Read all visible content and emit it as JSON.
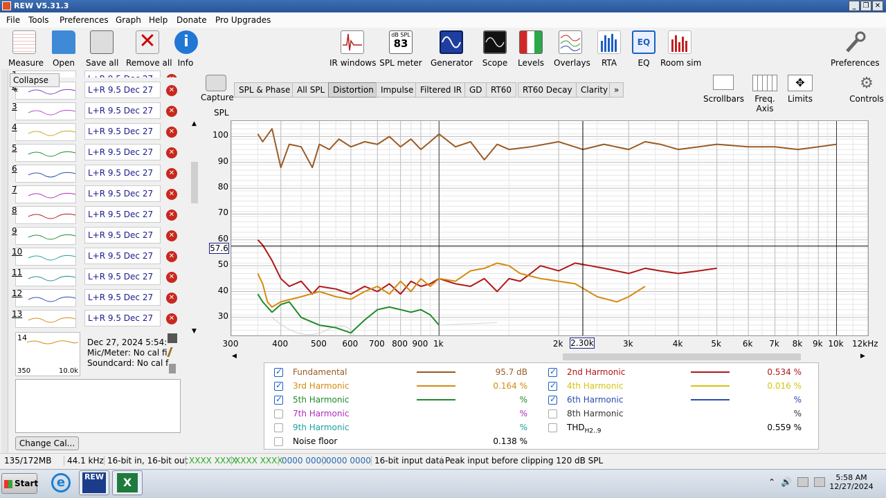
{
  "window": {
    "title": "REW V5.31.3"
  },
  "menu": [
    "File",
    "Tools",
    "Preferences",
    "Graph",
    "Help",
    "Donate",
    "Pro Upgrades"
  ],
  "toolbar": {
    "left": [
      {
        "label": "Measure",
        "icon": "measure-icon"
      },
      {
        "label": "Open",
        "icon": "folder-icon"
      },
      {
        "label": "Save all",
        "icon": "save-icon"
      },
      {
        "label": "Remove all",
        "icon": "remove-icon"
      },
      {
        "label": "Info",
        "icon": "info-icon"
      }
    ],
    "center": [
      {
        "label": "IR windows",
        "icon": "ir-windows-icon"
      },
      {
        "label": "SPL meter",
        "icon": "spl-meter-icon",
        "reading": "83",
        "unit": "dB SPL"
      },
      {
        "label": "Generator",
        "icon": "generator-icon"
      },
      {
        "label": "Scope",
        "icon": "scope-icon"
      },
      {
        "label": "Levels",
        "icon": "levels-icon"
      },
      {
        "label": "Overlays",
        "icon": "overlays-icon"
      },
      {
        "label": "RTA",
        "icon": "rta-icon"
      },
      {
        "label": "EQ",
        "icon": "eq-icon"
      },
      {
        "label": "Room sim",
        "icon": "room-sim-icon"
      }
    ],
    "right": {
      "label": "Preferences",
      "icon": "wrench-icon"
    }
  },
  "panel": {
    "collapse_label": "Collapse",
    "measurements": [
      {
        "num": "1",
        "name": "L+R 9.5 Dec 27"
      },
      {
        "num": "2",
        "name": "L+R 9.5 Dec 27"
      },
      {
        "num": "3",
        "name": "L+R 9.5 Dec 27"
      },
      {
        "num": "4",
        "name": "L+R 9.5 Dec 27"
      },
      {
        "num": "5",
        "name": "L+R 9.5 Dec 27"
      },
      {
        "num": "6",
        "name": "L+R 9.5 Dec 27"
      },
      {
        "num": "7",
        "name": "L+R 9.5 Dec 27"
      },
      {
        "num": "8",
        "name": "L+R 9.5 Dec 27"
      },
      {
        "num": "9",
        "name": "L+R 9.5 Dec 27"
      },
      {
        "num": "10",
        "name": "L+R 9.5 Dec 27"
      },
      {
        "num": "11",
        "name": "L+R 9.5 Dec 27"
      },
      {
        "num": "12",
        "name": "L+R 9.5 Dec 27"
      },
      {
        "num": "13",
        "name": "L+R 9.5 Dec 27"
      }
    ],
    "selected": {
      "num": "14",
      "date": "Dec 27, 2024 5:54:",
      "mic": "Mic/Meter: No cal fi",
      "soundcard": "Soundcard: No cal f",
      "range_lo": "350",
      "range_hi": "10.0k"
    },
    "change_cal": "Change Cal..."
  },
  "graph": {
    "capture_label": "Capture",
    "tabs": [
      "SPL & Phase",
      "All SPL",
      "Distortion",
      "Impulse",
      "Filtered IR",
      "GD",
      "RT60",
      "RT60 Decay",
      "Clarity",
      "»"
    ],
    "active_tab": "Distortion",
    "controls": [
      {
        "label": "Scrollbars",
        "icon": "scrollbars-icon"
      },
      {
        "label": "Freq. Axis",
        "icon": "freq-axis-icon"
      },
      {
        "label": "Limits",
        "icon": "limits-icon"
      },
      {
        "label": "Controls",
        "icon": "gear-icon"
      }
    ],
    "y_title": "SPL",
    "cursor_x": "2.30k",
    "cursor_y": "57.6"
  },
  "chart_data": {
    "type": "line",
    "x_scale": "log",
    "xlim": [
      300,
      12000
    ],
    "ylim": [
      23,
      106
    ],
    "yticks": [
      30,
      40,
      50,
      60,
      70,
      80,
      90,
      100
    ],
    "xticks": [
      "300",
      "400",
      "500",
      "600",
      "700",
      "800",
      "900",
      "1k",
      "2k",
      "3k",
      "4k",
      "5k",
      "6k",
      "7k",
      "8k",
      "9k",
      "10k",
      "12kHz"
    ],
    "xtick_values": [
      300,
      400,
      500,
      600,
      700,
      800,
      900,
      1000,
      2000,
      3000,
      4000,
      5000,
      6000,
      7000,
      8000,
      9000,
      10000,
      12000
    ],
    "series": [
      {
        "name": "Fundamental",
        "color": "#9a5a23",
        "x": [
          350,
          360,
          380,
          400,
          420,
          450,
          480,
          500,
          530,
          560,
          600,
          650,
          700,
          750,
          800,
          850,
          900,
          950,
          1000,
          1100,
          1200,
          1300,
          1400,
          1500,
          1700,
          2000,
          2300,
          2600,
          3000,
          3300,
          3600,
          4000,
          4500,
          5000,
          6000,
          7000,
          8000,
          9000,
          10000
        ],
        "y": [
          101,
          98,
          103,
          88,
          97,
          96,
          88,
          97,
          95,
          99,
          96,
          98,
          97,
          100,
          96,
          99,
          95,
          98,
          101,
          96,
          98,
          91,
          97,
          95,
          96,
          98,
          95,
          97,
          95,
          98,
          97,
          95,
          96,
          97,
          96,
          96,
          95,
          96,
          97
        ]
      },
      {
        "name": "2nd Harmonic",
        "color": "#b01515",
        "x": [
          350,
          360,
          370,
          380,
          400,
          420,
          450,
          480,
          500,
          550,
          600,
          650,
          700,
          750,
          800,
          850,
          900,
          950,
          1000,
          1100,
          1200,
          1300,
          1400,
          1500,
          1600,
          1700,
          1800,
          2000,
          2200,
          2400,
          2600,
          3000,
          3300,
          3600,
          4000,
          4500,
          5000
        ],
        "y": [
          60,
          58,
          55,
          52,
          45,
          42,
          44,
          39,
          42,
          41,
          39,
          42,
          40,
          43,
          39,
          44,
          42,
          43,
          45,
          43,
          42,
          45,
          40,
          45,
          44,
          47,
          50,
          48,
          51,
          50,
          49,
          47,
          49,
          48,
          47,
          48,
          49
        ]
      },
      {
        "name": "3rd Harmonic",
        "color": "#d58a0e",
        "x": [
          350,
          360,
          370,
          380,
          400,
          450,
          500,
          550,
          600,
          650,
          700,
          750,
          800,
          850,
          900,
          950,
          1000,
          1100,
          1200,
          1300,
          1400,
          1500,
          1600,
          1800,
          2000,
          2200,
          2500,
          2800,
          3000,
          3300
        ],
        "y": [
          47,
          43,
          36,
          34,
          36,
          38,
          40,
          38,
          37,
          40,
          42,
          39,
          44,
          40,
          45,
          42,
          45,
          44,
          48,
          49,
          51,
          50,
          47,
          45,
          44,
          43,
          38,
          36,
          38,
          42
        ]
      },
      {
        "name": "5th Harmonic",
        "color": "#1e8a2a",
        "x": [
          350,
          360,
          380,
          400,
          420,
          450,
          500,
          550,
          600,
          650,
          700,
          750,
          800,
          850,
          900,
          950,
          1000
        ],
        "y": [
          39,
          36,
          32,
          35,
          36,
          30,
          27,
          26,
          24,
          29,
          33,
          34,
          33,
          32,
          33,
          31,
          27
        ]
      }
    ]
  },
  "legend": [
    {
      "label": "Fundamental",
      "value": "95.7 dB",
      "checked": true,
      "color": "#9a5a23",
      "text_color": "#9a5a23"
    },
    {
      "label": "2nd Harmonic",
      "value": "0.534 %",
      "checked": true,
      "color": "#b01515",
      "text_color": "#b01515"
    },
    {
      "label": "3rd Harmonic",
      "value": "0.164 %",
      "checked": true,
      "color": "#d58a0e",
      "text_color": "#d58a0e"
    },
    {
      "label": "4th Harmonic",
      "value": "0.016 %",
      "checked": true,
      "color": "#d6c40e",
      "text_color": "#d6c40e"
    },
    {
      "label": "5th Harmonic",
      "value": "%",
      "checked": true,
      "color": "#1e8a2a",
      "text_color": "#1e8a2a"
    },
    {
      "label": "6th Harmonic",
      "value": "%",
      "checked": true,
      "color": "#2a4ab0",
      "text_color": "#2a4ab0"
    },
    {
      "label": "7th Harmonic",
      "value": "%",
      "checked": false,
      "color": "",
      "text_color": "#b02ac0"
    },
    {
      "label": "8th Harmonic",
      "value": "%",
      "checked": false,
      "color": "",
      "text_color": "#333333"
    },
    {
      "label": "9th Harmonic",
      "value": "%",
      "checked": false,
      "color": "",
      "text_color": "#1aa0a0"
    },
    {
      "label": "THD",
      "label_sub": "H2..9",
      "value": "0.559 %",
      "checked": false,
      "color": "",
      "text_color": "#000000"
    },
    {
      "label": "Noise floor",
      "value": "0.138 %",
      "checked": false,
      "color": "",
      "text_color": "#000000"
    }
  ],
  "status": [
    "135/172MB",
    "44.1 kHz",
    "16-bit in, 16-bit out",
    "XXXX XXXX",
    "XXXX XXXX",
    "0000 0000",
    "0000 0000",
    "16-bit input data",
    "Peak input before clipping 120 dB SPL"
  ],
  "taskbar": {
    "start": "Start",
    "time": "5:58 AM",
    "date": "12/27/2024"
  }
}
